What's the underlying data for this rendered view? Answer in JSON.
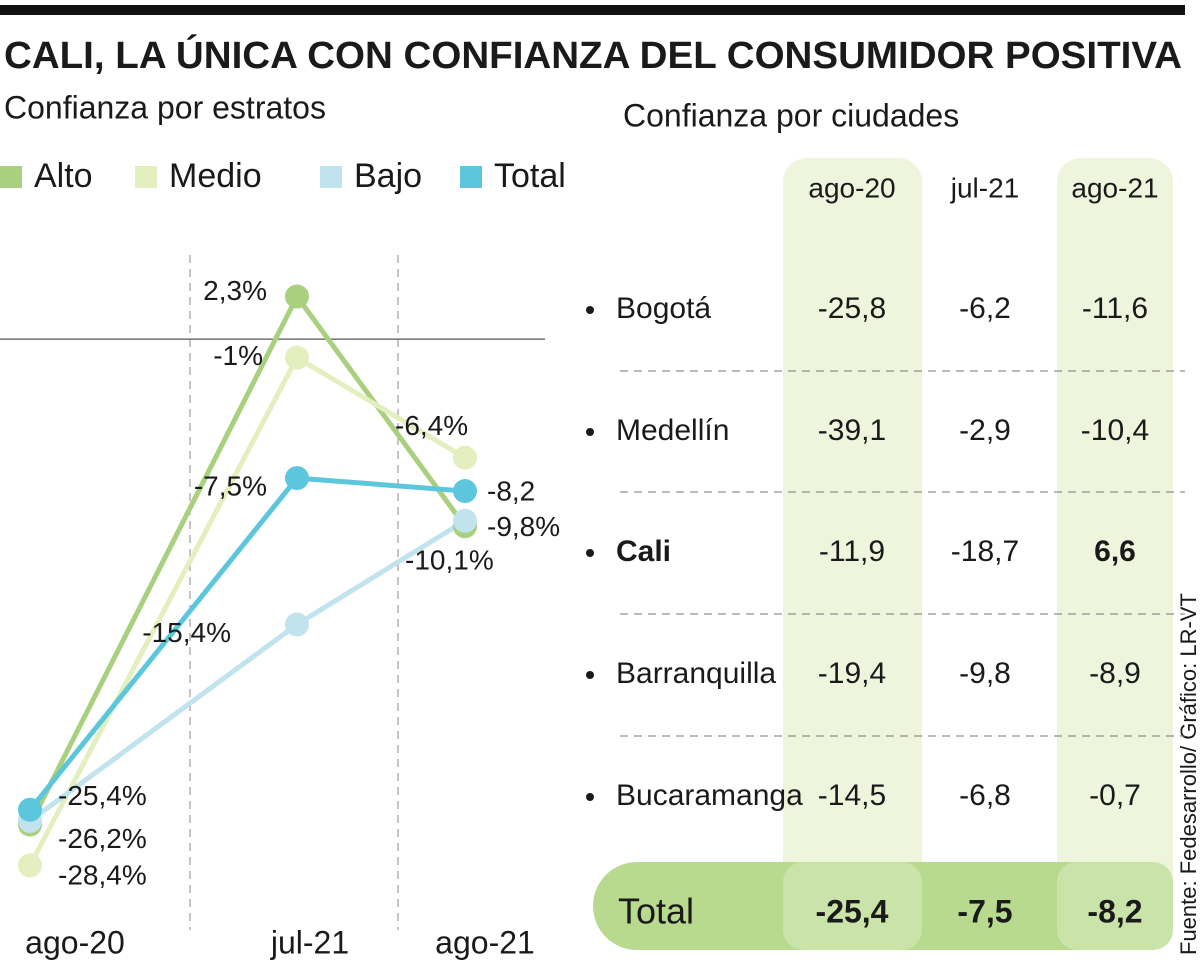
{
  "title": "CALI, LA ÚNICA CON CONFIANZA DEL CONSUMIDOR POSITIVA",
  "chart_data": {
    "type": "line",
    "subtitle": "Confianza por estratos",
    "categories": [
      "ago-20",
      "jul-21",
      "ago-21"
    ],
    "ylim": [
      -30,
      4
    ],
    "series": [
      {
        "name": "Alto",
        "color": "#a9d07e",
        "values": [
          -26.2,
          2.3,
          -10.1
        ],
        "value_labels": [
          "-26,2%",
          "2,3%",
          "-10,1%"
        ]
      },
      {
        "name": "Medio",
        "color": "#e4efc0",
        "values": [
          -28.4,
          -1,
          -6.4
        ],
        "value_labels": [
          "-28,4%",
          "-1%",
          "-6,4%"
        ]
      },
      {
        "name": "Bajo",
        "color": "#c0e3ee",
        "values": [
          -26,
          -15.4,
          -9.8
        ],
        "value_labels": [
          null,
          "-15,4%",
          "-9,8%"
        ]
      },
      {
        "name": "Total",
        "color": "#5cc6dc",
        "values": [
          -25.4,
          -7.5,
          -8.2
        ],
        "value_labels": [
          "-25,4%",
          "-7,5%",
          "-8,2"
        ]
      }
    ]
  },
  "table": {
    "title": "Confianza por ciudades",
    "columns": [
      {
        "label": "ago-20",
        "highlighted": true
      },
      {
        "label": "jul-21",
        "highlighted": false
      },
      {
        "label": "ago-21",
        "highlighted": true
      }
    ],
    "rows": [
      {
        "city": "Bogotá",
        "values": [
          "-25,8",
          "-6,2",
          "-11,6"
        ]
      },
      {
        "city": "Medellín",
        "values": [
          "-39,1",
          "-2,9",
          "-10,4"
        ]
      },
      {
        "city": "Cali",
        "values": [
          "-11,9",
          "-18,7",
          "6,6"
        ],
        "bold": true
      },
      {
        "city": "Barranquilla",
        "values": [
          "-19,4",
          "-9,8",
          "-8,9"
        ]
      },
      {
        "city": "Bucaramanga",
        "values": [
          "-14,5",
          "-6,8",
          "-0,7"
        ]
      }
    ],
    "total": {
      "label": "Total",
      "values": [
        "-25,4",
        "-7,5",
        "-8,2"
      ]
    }
  },
  "source": "Fuente: Fedesarrollo/ Gráfico: LR-VT"
}
